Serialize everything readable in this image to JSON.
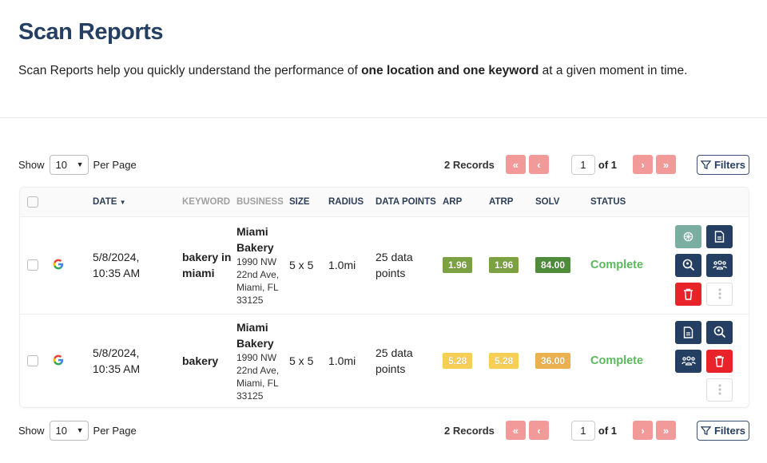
{
  "page": {
    "title": "Scan Reports",
    "intro_pre": "Scan Reports help you quickly understand the performance of ",
    "intro_bold": "one location and one keyword",
    "intro_post": " at a given moment in time."
  },
  "pager": {
    "show": "Show",
    "per_page_value": "10",
    "per_page": "Per Page",
    "records": "2 Records",
    "page": "1",
    "of": "of 1",
    "filters": "Filters"
  },
  "table": {
    "headers": {
      "date": "DATE",
      "keyword": "KEYWORD",
      "business": "BUSINESS",
      "size": "SIZE",
      "radius": "RADIUS",
      "data_points": "DATA POINTS",
      "arp": "ARP",
      "atrp": "ATRP",
      "solv": "SOLV",
      "status": "STATUS"
    },
    "rows": [
      {
        "date": "5/8/2024,",
        "time": "10:35 AM",
        "keyword": "bakery in miami",
        "business": "Miami Bakery",
        "address": "1990 NW 22nd Ave, Miami, FL 33125",
        "size": "5 x 5",
        "radius": "1.0mi",
        "data_points": "25 data points",
        "arp": "1.96",
        "atrp": "1.96",
        "solv": "84.00",
        "status": "Complete",
        "colors": {
          "arp": "#7ba142",
          "atrp": "#7ba142",
          "solv": "#4e8c3c"
        }
      },
      {
        "date": "5/8/2024,",
        "time": "10:35 AM",
        "keyword": "bakery",
        "business": "Miami Bakery",
        "address": "1990 NW 22nd Ave, Miami, FL 33125",
        "size": "5 x 5",
        "radius": "1.0mi",
        "data_points": "25 data points",
        "arp": "5.28",
        "atrp": "5.28",
        "solv": "36.00",
        "status": "Complete",
        "colors": {
          "arp": "#f8cf55",
          "atrp": "#f8cf55",
          "solv": "#ebb14e"
        }
      }
    ]
  }
}
